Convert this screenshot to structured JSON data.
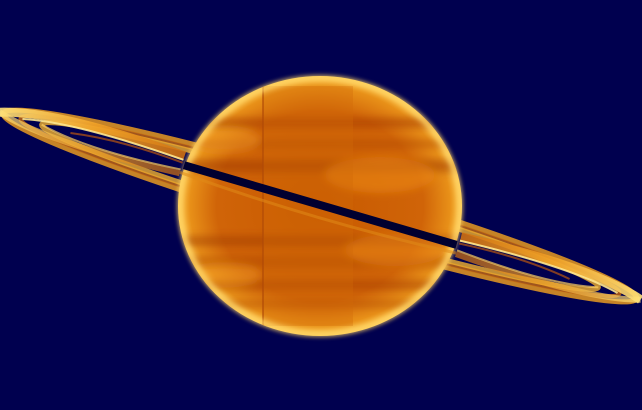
{
  "image": {
    "subject": "saturn-false-color",
    "palette": {
      "background": "#00004f",
      "planet_core": "#c65a00",
      "planet_mid": "#e08a10",
      "planet_limb": "#ffd060",
      "planet_dark_band": "#a83e0a",
      "ring_bright": "#ffe680",
      "ring_mid": "#f0a020",
      "ring_dark": "#b85510",
      "ring_shadow": "#000028"
    }
  }
}
